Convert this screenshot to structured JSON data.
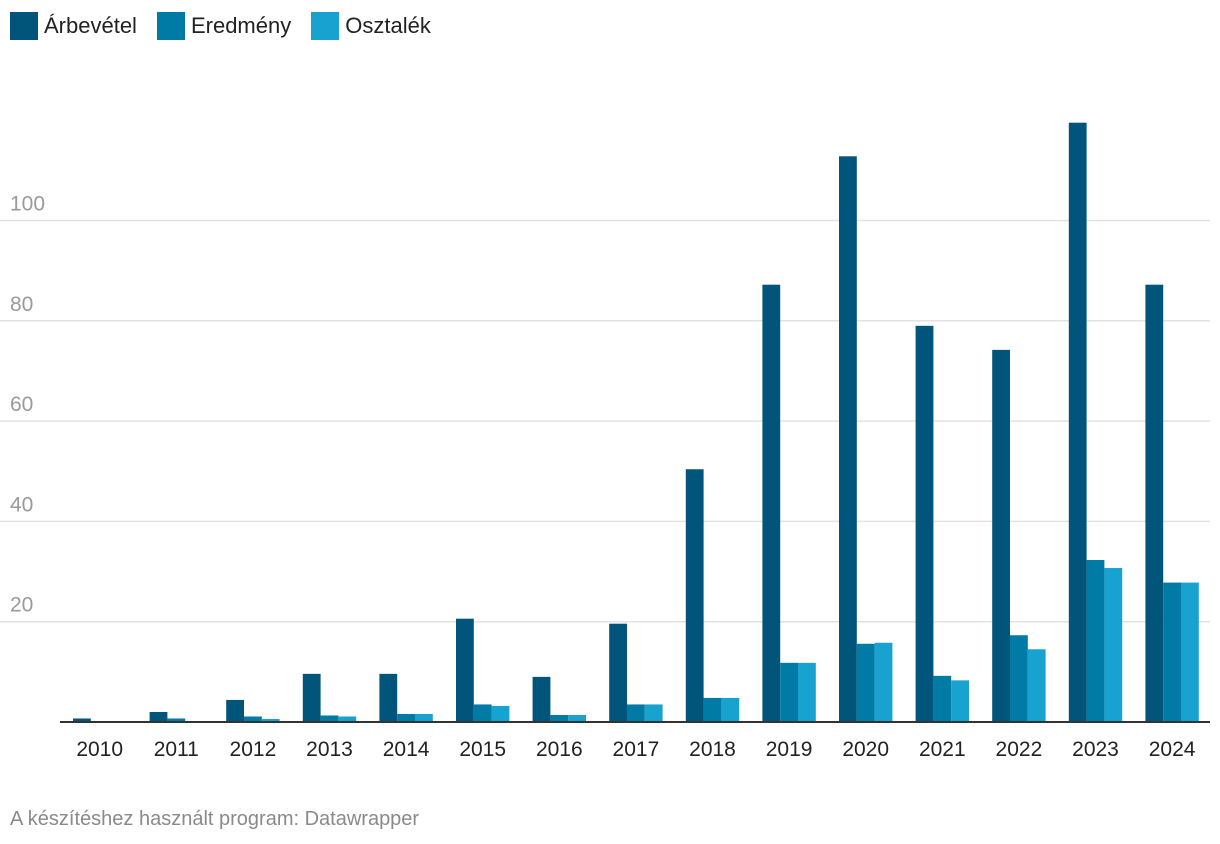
{
  "legend": [
    {
      "label": "Árbevétel",
      "color": "#01547a"
    },
    {
      "label": "Eredmény",
      "color": "#007ba5"
    },
    {
      "label": "Osztalék",
      "color": "#18a2cf"
    }
  ],
  "footer": {
    "credit": "A készítéshez használt program: Datawrapper"
  },
  "chart_data": {
    "type": "bar",
    "categories": [
      "2010",
      "2011",
      "2012",
      "2013",
      "2014",
      "2015",
      "2016",
      "2017",
      "2018",
      "2019",
      "2020",
      "2021",
      "2022",
      "2023",
      "2024"
    ],
    "series": [
      {
        "name": "Árbevétel",
        "color": "#01547a",
        "values": [
          0.7,
          2.0,
          4.4,
          9.6,
          9.6,
          20.6,
          9.0,
          19.6,
          50.4,
          87.2,
          112.8,
          79.0,
          74.2,
          119.5,
          87.2
        ]
      },
      {
        "name": "Eredmény",
        "color": "#007ba5",
        "values": [
          0.0,
          0.7,
          1.1,
          1.3,
          1.6,
          3.5,
          1.4,
          3.5,
          4.8,
          11.8,
          15.6,
          9.2,
          17.3,
          32.3,
          27.8
        ]
      },
      {
        "name": "Osztalék",
        "color": "#18a2cf",
        "values": [
          0.0,
          0.0,
          0.6,
          1.1,
          1.6,
          3.2,
          1.4,
          3.5,
          4.8,
          11.8,
          15.8,
          8.3,
          14.5,
          30.7,
          27.8
        ]
      }
    ],
    "yticks": [
      20,
      40,
      60,
      80,
      100
    ],
    "ylim": [
      0,
      125
    ],
    "grid": true,
    "legend_position": "top-left",
    "title": "",
    "xlabel": "",
    "ylabel": ""
  }
}
